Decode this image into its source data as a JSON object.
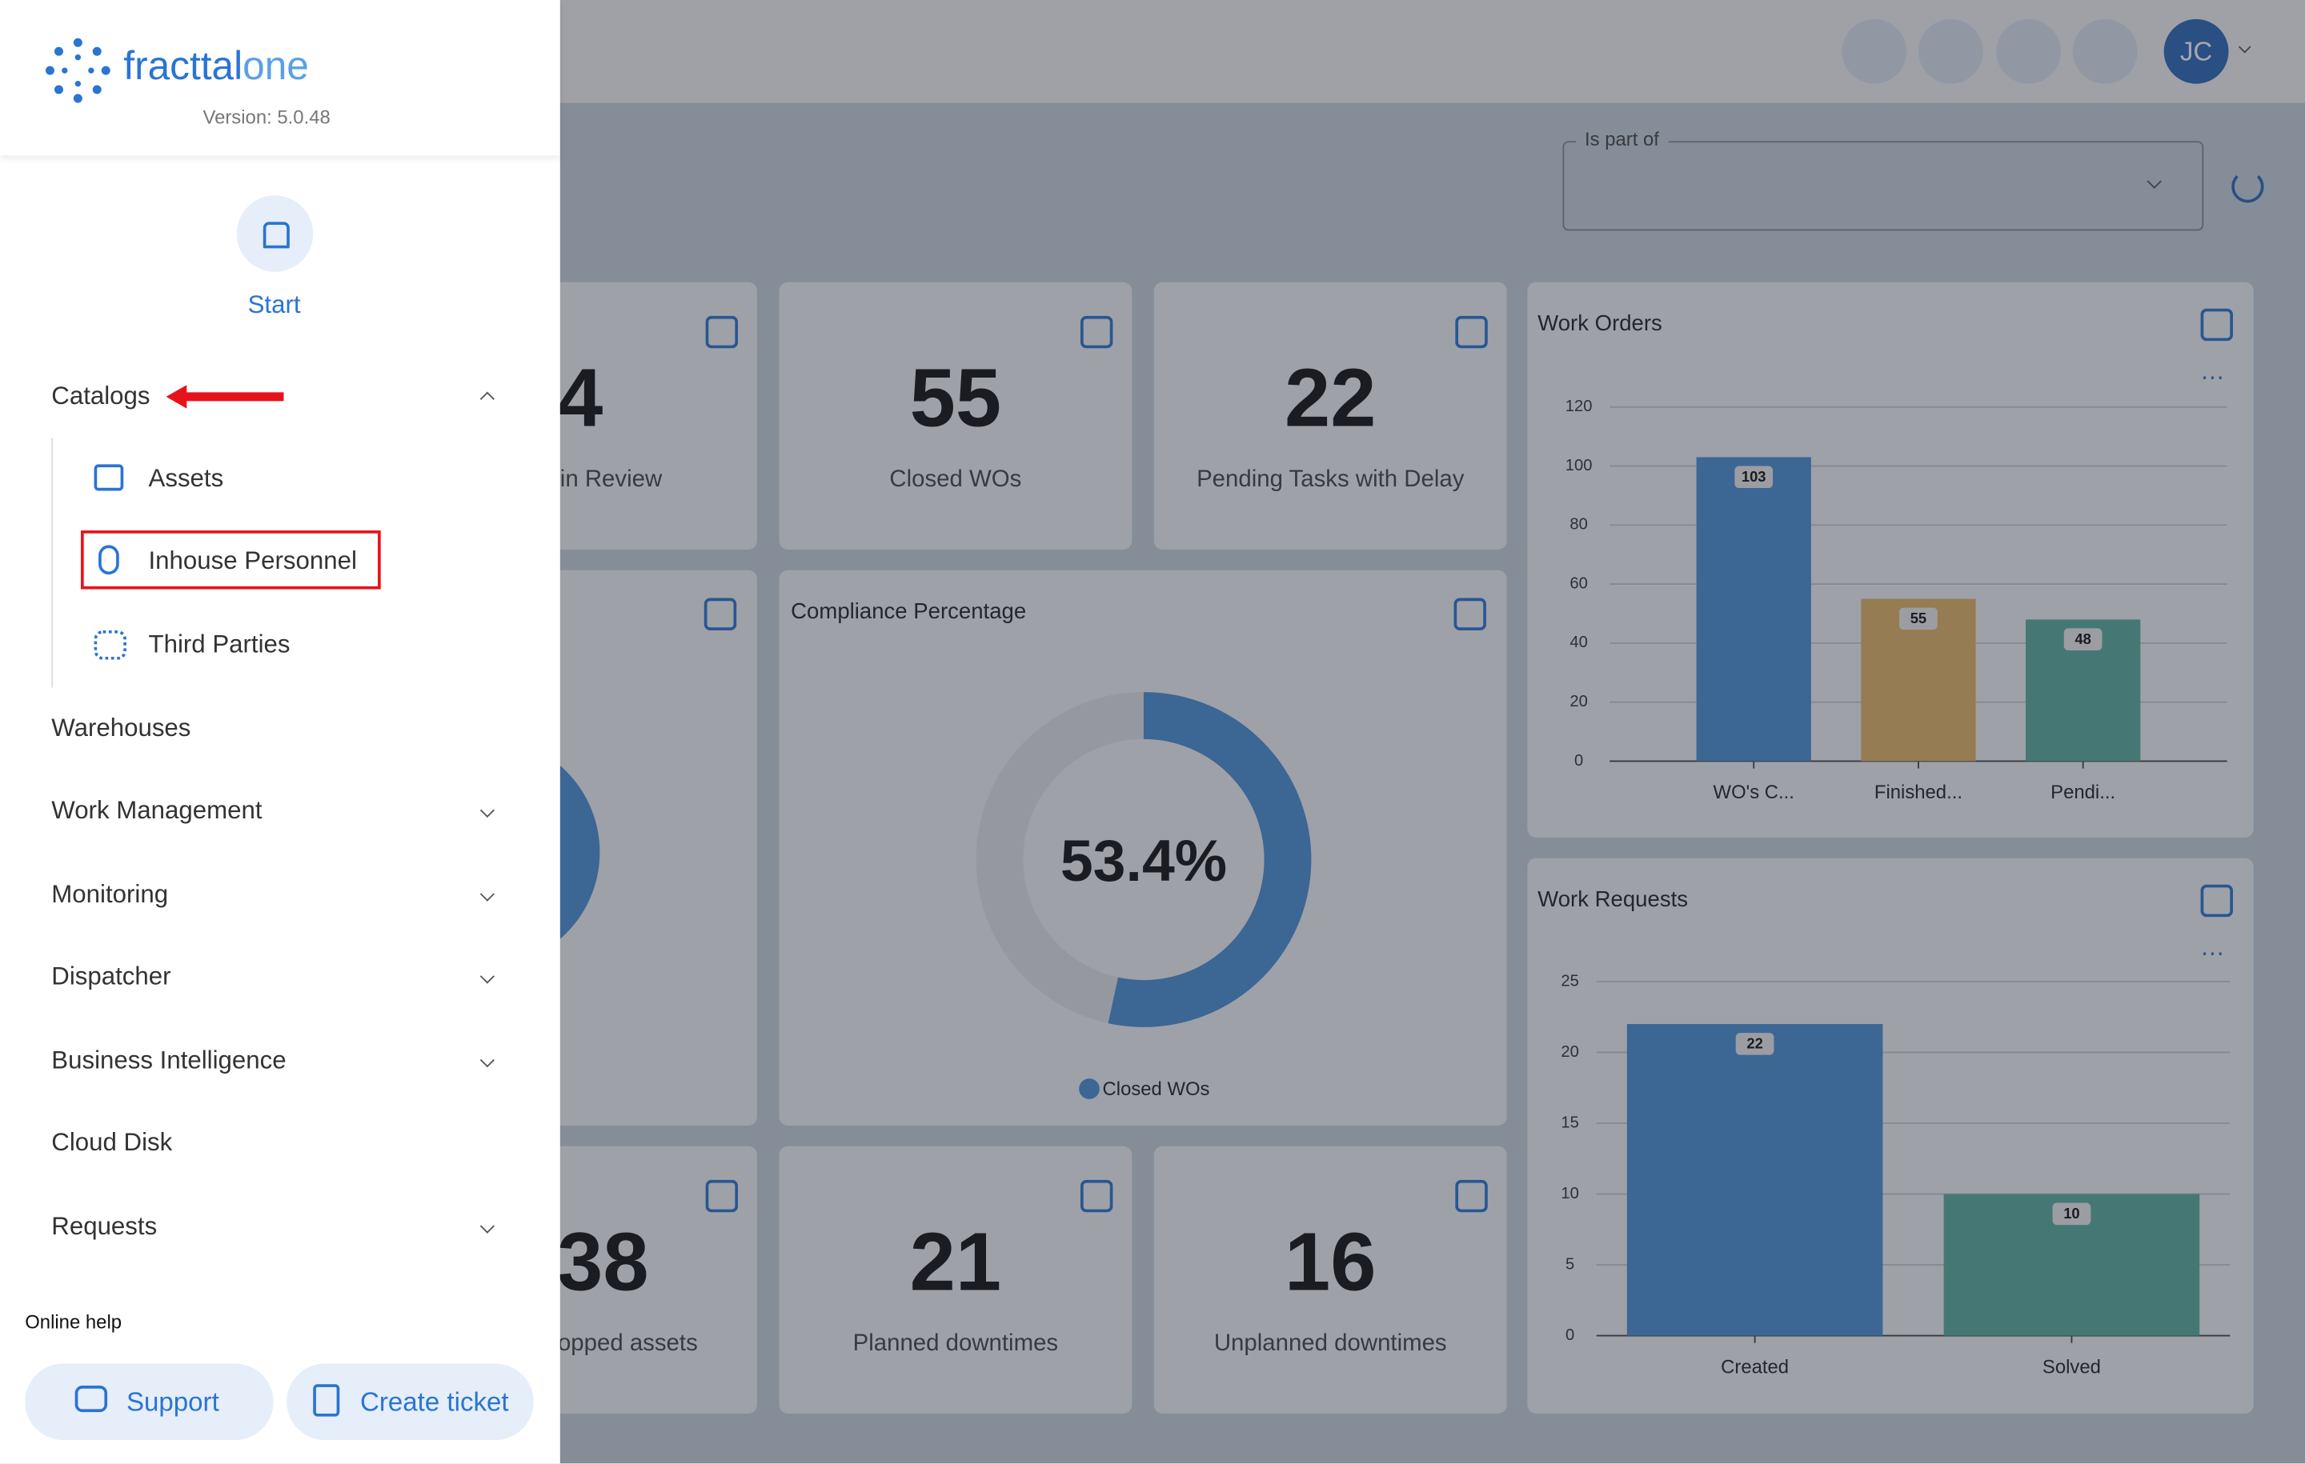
{
  "sidebar": {
    "brand": [
      "fracttal",
      "one"
    ],
    "version": "Version: 5.0.48",
    "start": "Start",
    "catalogs": {
      "label": "Catalogs",
      "children": [
        "Assets",
        "Inhouse Personnel",
        "Third Parties"
      ]
    },
    "menu": [
      "Warehouses",
      "Work Management",
      "Monitoring",
      "Dispatcher",
      "Business Intelligence",
      "Cloud Disk",
      "Requests"
    ],
    "help": "Online help",
    "buttons": [
      "Support",
      "Create ticket"
    ]
  },
  "header": {
    "avatar": "JC",
    "filter_label": "Is part of"
  },
  "kpis": [
    {
      "value": "4",
      "label": "in Review"
    },
    {
      "value": 55,
      "label": "Closed WOs"
    },
    {
      "value": 22,
      "label": "Pending Tasks with Delay"
    },
    {
      "value": "38",
      "label": "topped assets"
    },
    {
      "value": 21,
      "label": "Planned downtimes"
    },
    {
      "value": 16,
      "label": "Unplanned downtimes"
    }
  ],
  "charts": [
    {
      "type": "bar",
      "title": "Work Orders",
      "categories": [
        "WO's C...",
        "Finished...",
        "Pendi..."
      ],
      "values": [
        103,
        55,
        48
      ],
      "colors": [
        "#4a8fd6",
        "#e6b567",
        "#5aae9f"
      ],
      "ylim": [
        0,
        120
      ],
      "yticks": [
        0,
        20,
        40,
        60,
        80,
        100,
        120
      ],
      "grid": true
    },
    {
      "type": "bar",
      "title": "Work Requests",
      "categories": [
        "Created",
        "Solved"
      ],
      "values": [
        22,
        10
      ],
      "colors": [
        "#4a8fd6",
        "#5aae9f"
      ],
      "ylim": [
        0,
        25
      ],
      "yticks": [
        0,
        5,
        10,
        15,
        20,
        25
      ],
      "grid": true
    },
    {
      "type": "donut",
      "title": "Compliance Percentage",
      "value": 53.4,
      "value_label": "53.4%",
      "legend": "Closed WOs",
      "color": "#4a8fd6"
    }
  ]
}
